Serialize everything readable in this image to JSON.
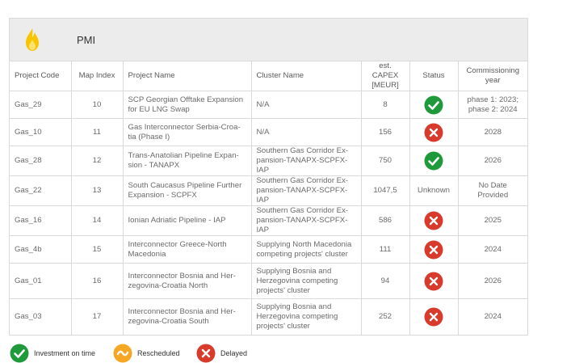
{
  "panel": {
    "title": "PMI"
  },
  "table": {
    "headers": {
      "code": "Project Code",
      "map": "Map Index",
      "name": "Project Name",
      "cluster": "Cluster Name",
      "capex": "est. CAPEX [MEUR]",
      "status": "Status",
      "year": "Commissioning year"
    },
    "rows": [
      {
        "code": "Gas_29",
        "map": "10",
        "name": "SCP Georgian Offtake Expansion for EU LNG Swap",
        "cluster": "N/A",
        "capex": "8",
        "status": "on-time",
        "year": "phase 1: 2023; phase 2: 2024"
      },
      {
        "code": "Gas_10",
        "map": "11",
        "name": "Gas Interconnector Serbia-Croa-tia (Phase I)",
        "cluster": "N/A",
        "capex": "156",
        "status": "delayed",
        "year": "2028"
      },
      {
        "code": "Gas_28",
        "map": "12",
        "name": "Trans-Anatolian Pipeline Expan-sion - TANAPX",
        "cluster": "Southern Gas Corridor Ex-pansion-TANAPX-SCPFX-IAP",
        "capex": "750",
        "status": "on-time",
        "year": "2026"
      },
      {
        "code": "Gas_22",
        "map": "13",
        "name": "South Caucasus Pipeline Further Expansion - SCPFX",
        "cluster": "Southern Gas Corridor Ex-pansion-TANAPX-SCPFX-IAP",
        "capex": "1047,5",
        "status": "unknown",
        "status_text": "Unknown",
        "year": "No Date Provided"
      },
      {
        "code": "Gas_16",
        "map": "14",
        "name": "Ionian Adriatic Pipeline - IAP",
        "cluster": "Southern Gas Corridor Ex-pansion-TANAPX-SCPFX-IAP",
        "capex": "586",
        "status": "delayed",
        "year": "2025"
      },
      {
        "code": "Gas_4b",
        "map": "15",
        "name": "Interconnector Greece-North Macedonia",
        "cluster": "Supplying North Macedonia competing projects' cluster",
        "capex": "111",
        "status": "delayed",
        "year": "2024"
      },
      {
        "code": "Gas_01",
        "map": "16",
        "name": "Interconnector Bosnia and Her-zegovina-Croatia North",
        "cluster": "Supplying Bosnia and Herzegovina competing projects' cluster",
        "capex": "94",
        "status": "delayed",
        "year": "2026"
      },
      {
        "code": "Gas_03",
        "map": "17",
        "name": "Interconnector Bosnia and Her-zegovina-Croatia South",
        "cluster": "Supplying Bosnia and Herzegovina competing projects' cluster",
        "capex": "252",
        "status": "delayed",
        "year": "2024"
      }
    ]
  },
  "legend": {
    "on_time": "Investment on time",
    "rescheduled": "Rescheduled",
    "delayed": "Delayed"
  },
  "colors": {
    "on_time": "#1f9a3b",
    "rescheduled": "#f5a623",
    "delayed": "#d83a2b",
    "flame": "#f7c600",
    "header_bg": "#ececec",
    "border": "#d9d9d9"
  },
  "icons": {
    "on_time": "check-circle-icon",
    "rescheduled": "tilde-circle-icon",
    "delayed": "x-circle-icon",
    "panel": "flame-icon"
  }
}
